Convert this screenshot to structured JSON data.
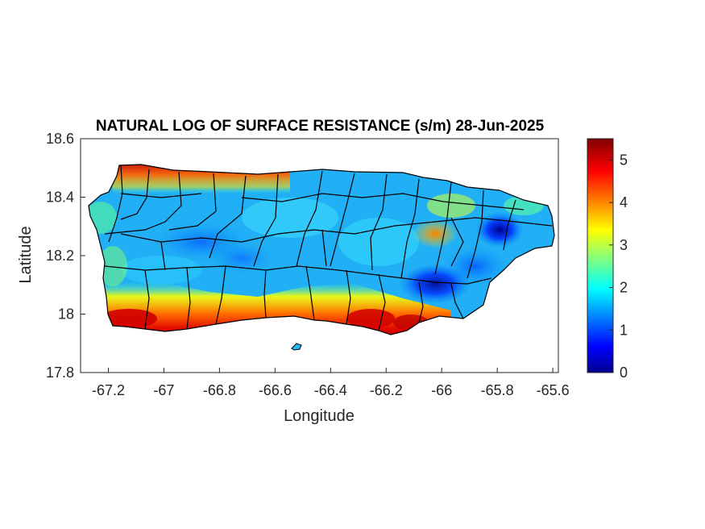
{
  "map": {
    "title": "NATURAL LOG OF SURFACE RESISTANCE (s/m) 28-Jun-2025",
    "xlabel": "Longitude",
    "ylabel": "Latitude",
    "xlim": [
      -67.3,
      -65.58
    ],
    "ylim": [
      17.8,
      18.6
    ],
    "xticks": [
      {
        "value": -67.2,
        "label": "-67.2"
      },
      {
        "value": -67.0,
        "label": "-67"
      },
      {
        "value": -66.8,
        "label": "-66.8"
      },
      {
        "value": -66.6,
        "label": "-66.6"
      },
      {
        "value": -66.4,
        "label": "-66.4"
      },
      {
        "value": -66.2,
        "label": "-66.2"
      },
      {
        "value": -66.0,
        "label": "-66"
      },
      {
        "value": -65.8,
        "label": "-65.8"
      },
      {
        "value": -65.6,
        "label": "-65.6"
      }
    ],
    "yticks": [
      {
        "value": 17.8,
        "label": "17.8"
      },
      {
        "value": 18.0,
        "label": "18"
      },
      {
        "value": 18.2,
        "label": "18.2"
      },
      {
        "value": 18.4,
        "label": "18.4"
      },
      {
        "value": 18.6,
        "label": "18.6"
      }
    ],
    "colorbar": {
      "colormap": "jet",
      "range": [
        0,
        5.5
      ],
      "ticks": [
        {
          "value": 0,
          "label": "0"
        },
        {
          "value": 1,
          "label": "1"
        },
        {
          "value": 2,
          "label": "2"
        },
        {
          "value": 3,
          "label": "3"
        },
        {
          "value": 4,
          "label": "4"
        },
        {
          "value": 5,
          "label": "5"
        }
      ]
    },
    "colors": {
      "dark_blue": "#00008f",
      "blue": "#0050ff",
      "cyan": "#00c8ff",
      "green": "#50ff9f",
      "yellow": "#f0ff10",
      "orange": "#ff8000",
      "red": "#e00000",
      "dark_red": "#800000",
      "boundary": "#000000"
    }
  }
}
